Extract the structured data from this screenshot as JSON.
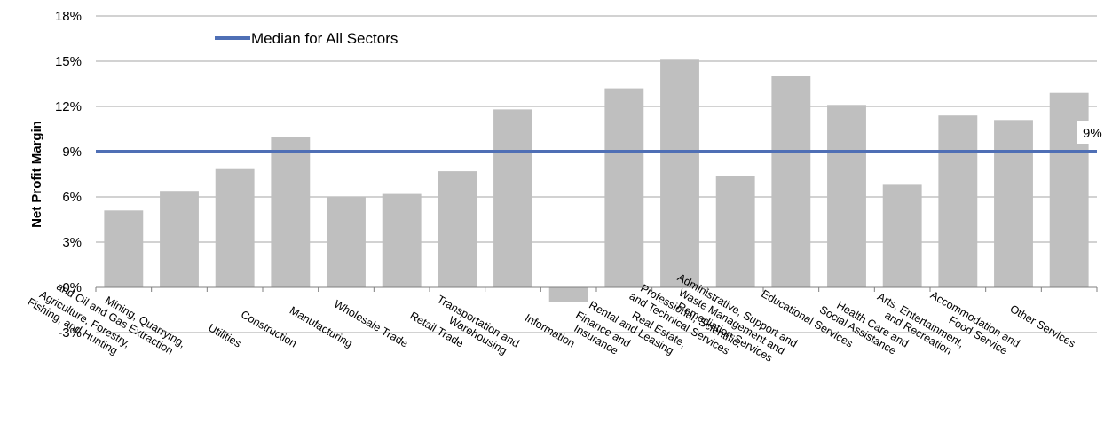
{
  "chart_data": {
    "type": "bar",
    "ylabel": "Net Profit Margin",
    "xlabel": "",
    "ylim": [
      -3,
      18
    ],
    "yticks": [
      -3,
      0,
      3,
      6,
      9,
      12,
      15,
      18
    ],
    "ytick_labels": [
      "-3%",
      "0%",
      "3%",
      "6%",
      "9%",
      "12%",
      "15%",
      "18%"
    ],
    "categories": [
      [
        "Agriculture, Forestry,",
        "Fishing, and Hunting"
      ],
      [
        "Mining, Quarrying,",
        "and Oil and Gas Extraction"
      ],
      [
        "Utilities"
      ],
      [
        "Construction"
      ],
      [
        "Manufacturing"
      ],
      [
        "Wholesale Trade"
      ],
      [
        "Retail Trade"
      ],
      [
        "Transportation and",
        "Warehousing"
      ],
      [
        "Information"
      ],
      [
        "Finance and",
        "Insurance"
      ],
      [
        "Real Estate,",
        "Rental and Leasing"
      ],
      [
        "Professional, Scientific,",
        "and Technical Services"
      ],
      [
        "Administrative, Support and",
        "Waste Management and",
        "Remediation Services"
      ],
      [
        "Educational Services"
      ],
      [
        "Health Care and",
        "Social Assistance"
      ],
      [
        "Arts, Entertainment,",
        "and Recreation"
      ],
      [
        "Accommodation and",
        "Food Service"
      ],
      [
        "Other Services"
      ]
    ],
    "values": [
      5.1,
      6.4,
      7.9,
      10.0,
      6.0,
      6.2,
      7.7,
      11.8,
      -1.0,
      13.2,
      15.1,
      7.4,
      14.0,
      12.1,
      6.8,
      11.4,
      11.1,
      12.9
    ],
    "bar_color": "#bfbfbf",
    "median": {
      "label": "Median for All Sectors",
      "value": 9,
      "value_label": "9%",
      "color": "#4f6fb5"
    },
    "grid": true,
    "grid_color": "#a6a6a6",
    "legend_position": "top-left"
  }
}
